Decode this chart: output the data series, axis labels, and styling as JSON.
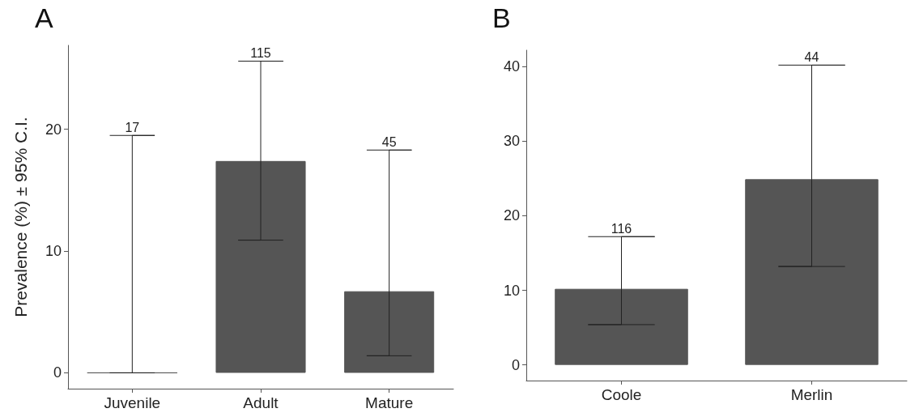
{
  "chart_data": [
    {
      "type": "bar",
      "title": "A",
      "ylabel": "Prevalence (%) ± 95% C.I.",
      "categories": [
        "Juvenile",
        "Adult",
        "Mature"
      ],
      "values": [
        0,
        17.4,
        6.7
      ],
      "color": "#555555",
      "errors": [
        [
          0,
          19.5
        ],
        [
          10.9,
          25.6
        ],
        [
          1.4,
          18.3
        ]
      ],
      "ylim": [
        -1.3,
        26.9
      ],
      "yticks": [
        0,
        10,
        20
      ],
      "grid": false,
      "annotations": [
        {
          "text": "17",
          "x": "Juvenile",
          "y": 19.5
        },
        {
          "text": "115",
          "x": "Adult",
          "y": 25.6
        },
        {
          "text": "45",
          "x": "Mature",
          "y": 18.3
        }
      ]
    },
    {
      "type": "bar",
      "title": "B",
      "categories": [
        "Coole",
        "Merlin"
      ],
      "values": [
        10.2,
        24.9
      ],
      "color": "#555555",
      "errors": [
        [
          5.4,
          17.2
        ],
        [
          13.2,
          40.2
        ]
      ],
      "ylim": [
        -2.1,
        42.2
      ],
      "yticks": [
        0,
        10,
        20,
        30,
        40
      ],
      "grid": false,
      "annotations": [
        {
          "text": "116",
          "x": "Coole",
          "y": 17.2
        },
        {
          "text": "44",
          "x": "Merlin",
          "y": 40.2
        }
      ]
    }
  ]
}
